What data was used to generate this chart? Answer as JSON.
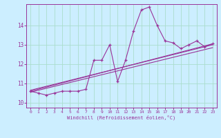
{
  "xlabel": "Windchill (Refroidissement éolien,°C)",
  "background_color": "#cceeff",
  "grid_color": "#aaddcc",
  "line_color": "#993399",
  "xlim": [
    -0.5,
    23.5
  ],
  "ylim": [
    9.75,
    15.1
  ],
  "yticks": [
    10,
    11,
    12,
    13,
    14
  ],
  "xticks": [
    0,
    1,
    2,
    3,
    4,
    5,
    6,
    7,
    8,
    9,
    10,
    11,
    12,
    13,
    14,
    15,
    16,
    17,
    18,
    19,
    20,
    21,
    22,
    23
  ],
  "main_series": [
    [
      0,
      10.6
    ],
    [
      1,
      10.5
    ],
    [
      2,
      10.4
    ],
    [
      3,
      10.5
    ],
    [
      4,
      10.6
    ],
    [
      5,
      10.6
    ],
    [
      6,
      10.6
    ],
    [
      7,
      10.7
    ],
    [
      8,
      12.2
    ],
    [
      9,
      12.2
    ],
    [
      10,
      13.0
    ],
    [
      11,
      11.1
    ],
    [
      12,
      12.2
    ],
    [
      13,
      13.7
    ],
    [
      14,
      14.8
    ],
    [
      15,
      14.95
    ],
    [
      16,
      14.0
    ],
    [
      17,
      13.2
    ],
    [
      18,
      13.1
    ],
    [
      19,
      12.8
    ],
    [
      20,
      13.0
    ],
    [
      21,
      13.2
    ],
    [
      22,
      12.9
    ],
    [
      23,
      13.05
    ]
  ],
  "linear_series": [
    [
      [
        0,
        10.6
      ],
      [
        23,
        13.05
      ]
    ],
    [
      [
        0,
        10.55
      ],
      [
        23,
        12.85
      ]
    ],
    [
      [
        0,
        10.65
      ],
      [
        23,
        13.0
      ]
    ]
  ]
}
